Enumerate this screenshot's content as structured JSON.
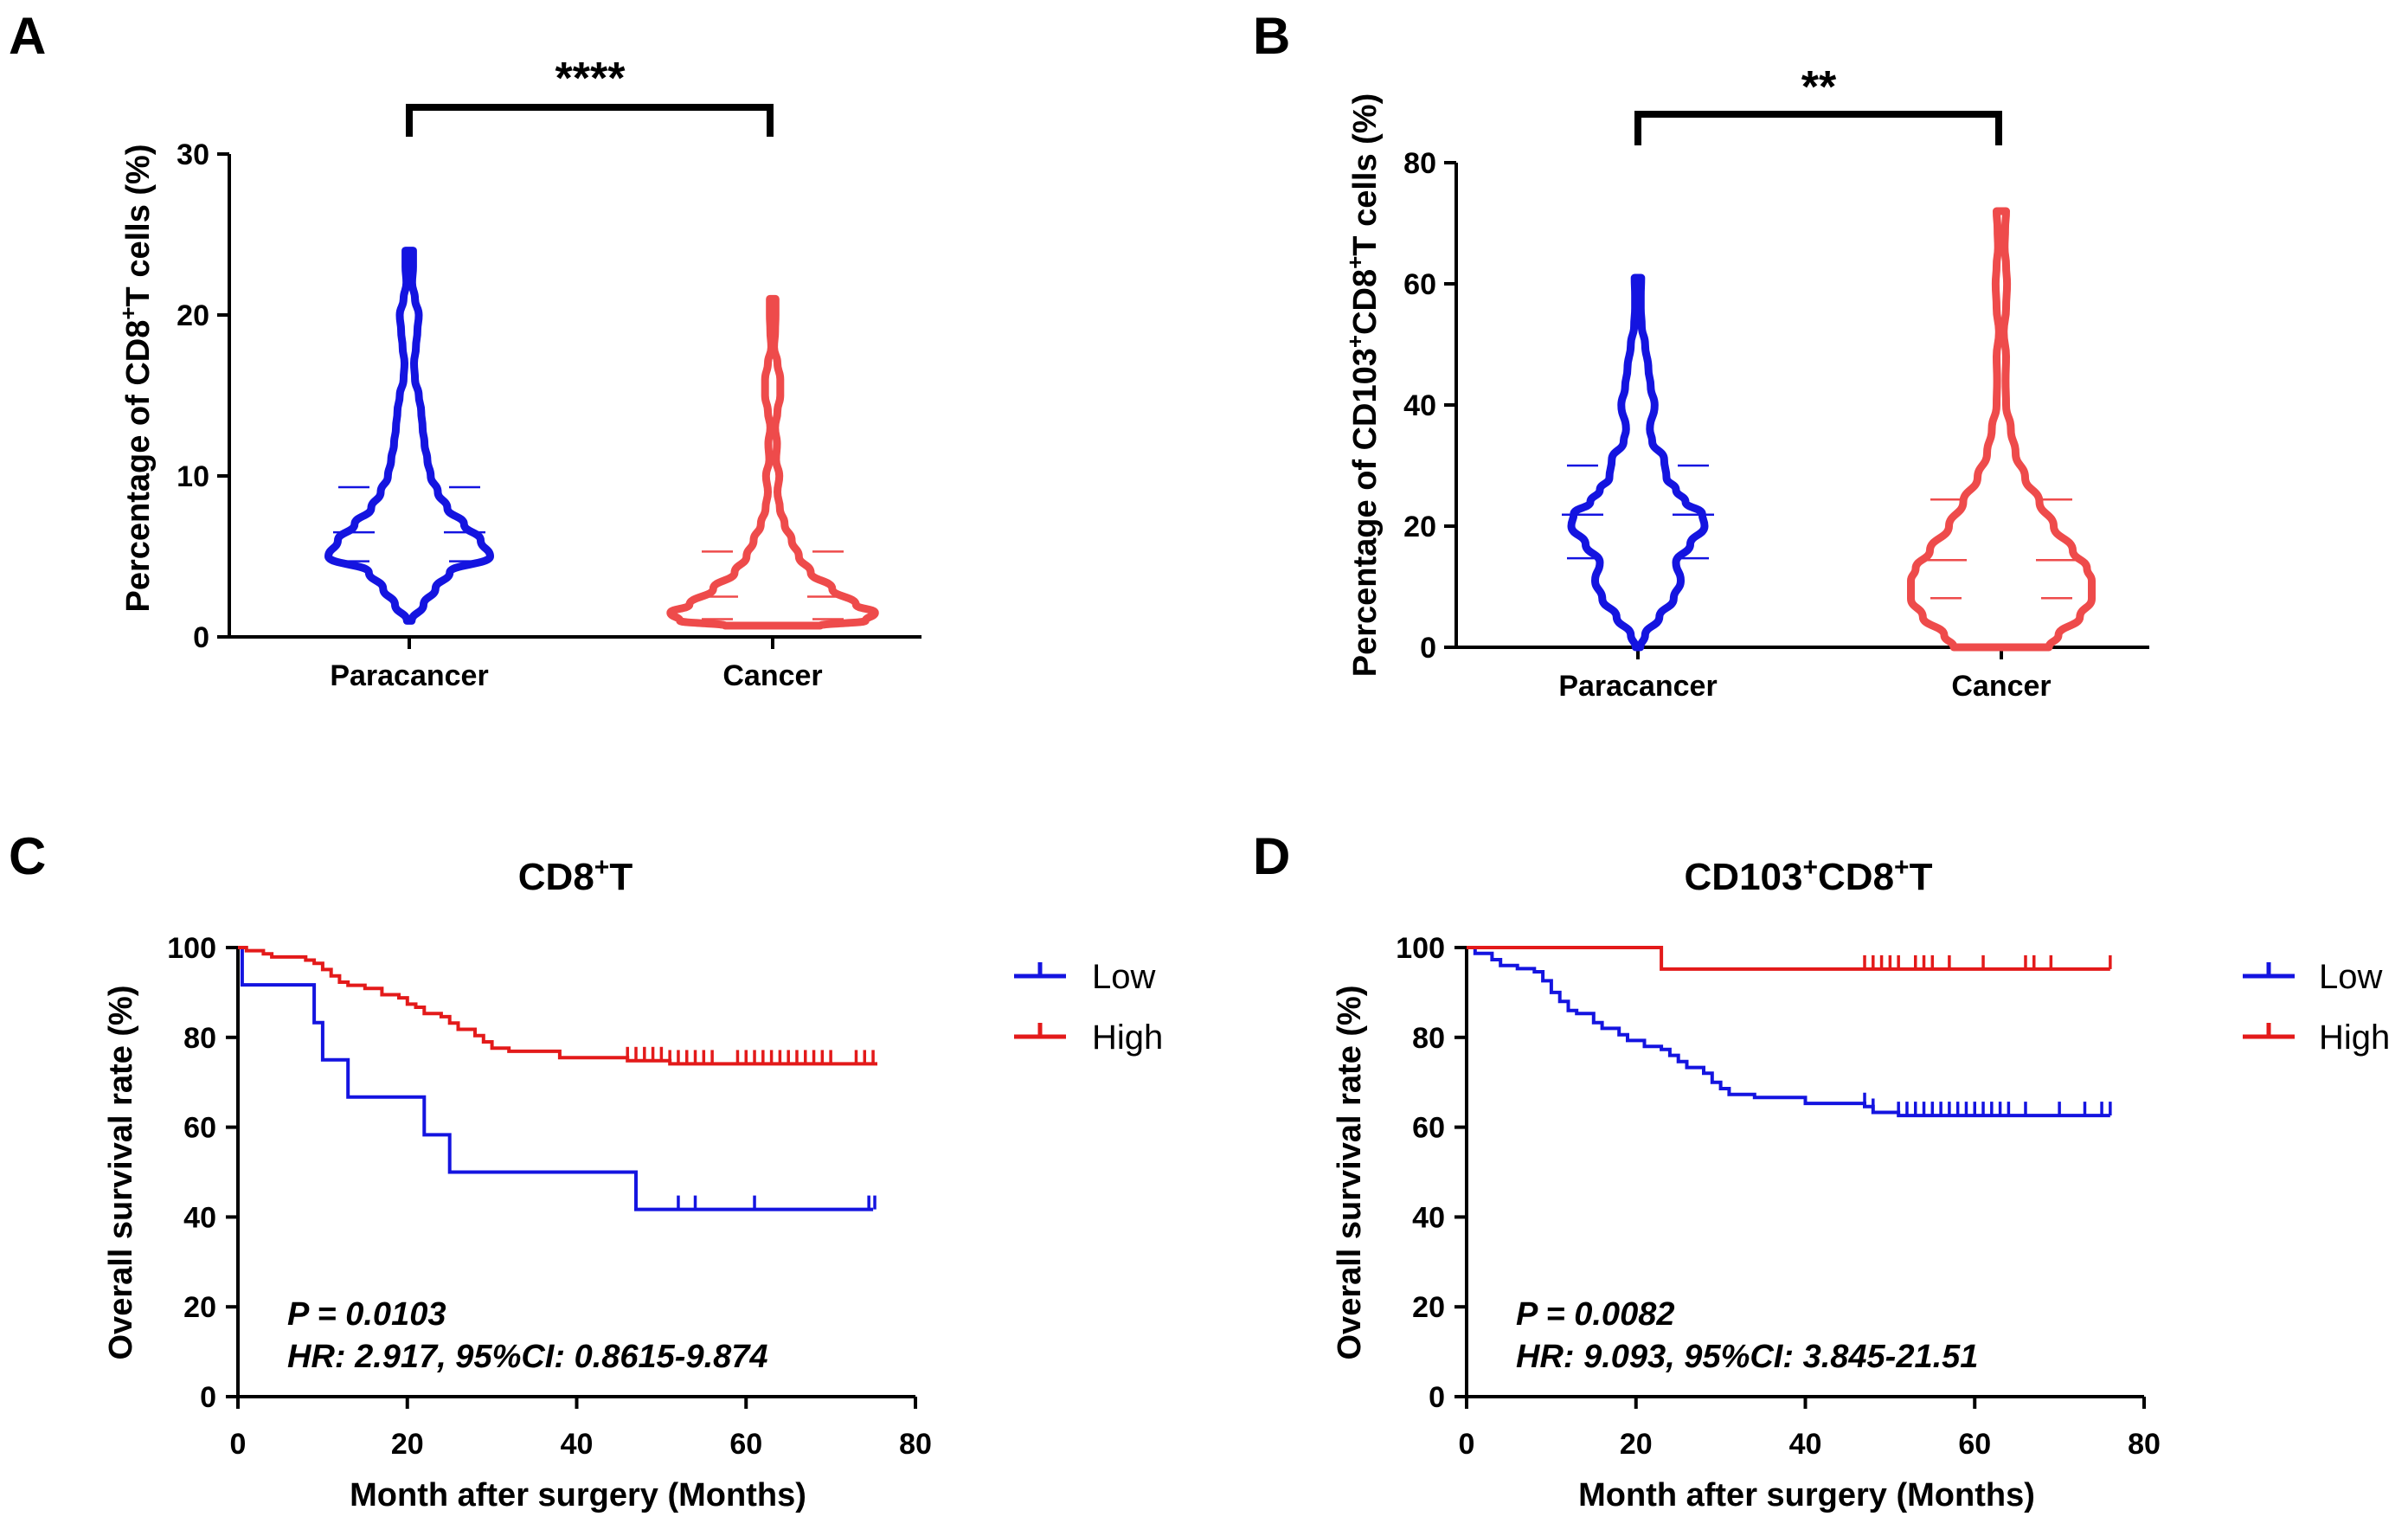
{
  "colors": {
    "paracancer": "#1414e0",
    "cancer": "#ee4b4b",
    "low": "#1414e0",
    "high": "#e31a1a",
    "axis": "#000000"
  },
  "chart_data": [
    {
      "panel": "A",
      "type": "violin",
      "ylabel_prefix": "Percentage of CD8",
      "ylabel_sup": "+",
      "ylabel_suffix": "T cells (%)",
      "ylim": [
        0,
        30
      ],
      "yticks": [
        "0",
        "10",
        "20",
        "30"
      ],
      "categories": [
        "Paracancer",
        "Cancer"
      ],
      "significance": "****",
      "series": [
        {
          "name": "Paracancer",
          "profile": [
            [
              1,
              5
            ],
            [
              2,
              30
            ],
            [
              3,
              55
            ],
            [
              4,
              85
            ],
            [
              5,
              170
            ],
            [
              6,
              150
            ],
            [
              7,
              115
            ],
            [
              8,
              80
            ],
            [
              9,
              60
            ],
            [
              10,
              45
            ],
            [
              11,
              38
            ],
            [
              12,
              32
            ],
            [
              13,
              28
            ],
            [
              14,
              25
            ],
            [
              15,
              20
            ],
            [
              16,
              12
            ],
            [
              17,
              10
            ],
            [
              18,
              14
            ],
            [
              19,
              17
            ],
            [
              20,
              20
            ],
            [
              21,
              12
            ],
            [
              22,
              6
            ],
            [
              23,
              8
            ],
            [
              24,
              8
            ]
          ],
          "quartiles": [
            4.7,
            6.5,
            9.3
          ]
        },
        {
          "name": "Cancer",
          "profile": [
            [
              0.7,
              100
            ],
            [
              1,
              195
            ],
            [
              1.5,
              215
            ],
            [
              2,
              175
            ],
            [
              3,
              125
            ],
            [
              4,
              80
            ],
            [
              5,
              55
            ],
            [
              6,
              40
            ],
            [
              7,
              25
            ],
            [
              8,
              15
            ],
            [
              9,
              10
            ],
            [
              10,
              14
            ],
            [
              11,
              7
            ],
            [
              12,
              9
            ],
            [
              13,
              5
            ],
            [
              14,
              10
            ],
            [
              15,
              16
            ],
            [
              16,
              16
            ],
            [
              17,
              10
            ],
            [
              18,
              3
            ],
            [
              19,
              5
            ],
            [
              20,
              6
            ],
            [
              21,
              6
            ]
          ],
          "quartiles": [
            1.1,
            2.5,
            5.3
          ]
        }
      ]
    },
    {
      "panel": "B",
      "type": "violin",
      "ylabel_prefix": "Percentage of CD103",
      "ylabel_sup": "+",
      "ylabel_mid": "CD8",
      "ylabel_sup2": "+",
      "ylabel_suffix": "T cells (%)",
      "ylim": [
        0,
        80
      ],
      "yticks": [
        "0",
        "20",
        "40",
        "60",
        "80"
      ],
      "categories": [
        "Paracancer",
        "Cancer"
      ],
      "significance": "**",
      "series": [
        {
          "name": "Paracancer",
          "profile": [
            [
              0,
              5
            ],
            [
              2,
              15
            ],
            [
              5,
              45
            ],
            [
              8,
              75
            ],
            [
              11,
              90
            ],
            [
              14,
              80
            ],
            [
              17,
              110
            ],
            [
              20,
              140
            ],
            [
              22,
              135
            ],
            [
              24,
              100
            ],
            [
              26,
              80
            ],
            [
              28,
              60
            ],
            [
              31,
              55
            ],
            [
              34,
              30
            ],
            [
              36,
              25
            ],
            [
              40,
              35
            ],
            [
              43,
              27
            ],
            [
              46,
              22
            ],
            [
              50,
              15
            ],
            [
              53,
              8
            ],
            [
              56,
              6
            ],
            [
              58,
              6
            ],
            [
              61,
              7
            ]
          ],
          "quartiles": [
            14.7,
            21.9,
            30.0
          ]
        },
        {
          "name": "Cancer",
          "profile": [
            [
              0,
              100
            ],
            [
              2,
              120
            ],
            [
              5,
              165
            ],
            [
              8,
              190
            ],
            [
              11,
              190
            ],
            [
              13,
              180
            ],
            [
              16,
              150
            ],
            [
              20,
              110
            ],
            [
              24,
              80
            ],
            [
              28,
              50
            ],
            [
              32,
              30
            ],
            [
              36,
              20
            ],
            [
              40,
              10
            ],
            [
              44,
              9
            ],
            [
              48,
              10
            ],
            [
              52,
              5
            ],
            [
              56,
              10
            ],
            [
              60,
              12
            ],
            [
              63,
              10
            ],
            [
              66,
              7
            ],
            [
              69,
              8
            ],
            [
              72,
              10
            ]
          ],
          "quartiles": [
            8.1,
            14.4,
            24.4
          ]
        }
      ]
    },
    {
      "panel": "C",
      "type": "line",
      "subtype": "kaplan-meier",
      "title_prefix": "CD8",
      "title_sup": "+",
      "title_suffix": "T",
      "xlabel": "Month after surgery (Months)",
      "ylabel": "Overall survival rate (%)",
      "xlim": [
        0,
        80
      ],
      "ylim": [
        0,
        100
      ],
      "xticks": [
        "0",
        "20",
        "40",
        "60",
        "80"
      ],
      "yticks": [
        "0",
        "20",
        "40",
        "60",
        "80",
        "100"
      ],
      "p_label": "P = 0.0103",
      "hr_label": "HR",
      "hr_text": ":  2.917, 95%CI: 0.8615-9.874",
      "series": [
        {
          "name": "Low",
          "steps": [
            [
              0,
              100
            ],
            [
              0.5,
              91.7
            ],
            [
              9,
              83.3
            ],
            [
              10,
              75
            ],
            [
              13,
              66.7
            ],
            [
              22,
              58.3
            ],
            [
              25,
              50
            ],
            [
              47,
              41.7
            ],
            [
              75,
              41.7
            ]
          ],
          "censored": [
            52,
            54,
            61,
            74.5,
            75.2
          ]
        },
        {
          "name": "High",
          "steps": [
            [
              0,
              100
            ],
            [
              1,
              99.3
            ],
            [
              3,
              98.6
            ],
            [
              4,
              97.9
            ],
            [
              8,
              97.2
            ],
            [
              9,
              96.5
            ],
            [
              10,
              95.1
            ],
            [
              11,
              93.7
            ],
            [
              12,
              92.3
            ],
            [
              13,
              91.6
            ],
            [
              15,
              90.9
            ],
            [
              17,
              89.5
            ],
            [
              19,
              88.8
            ],
            [
              20,
              87.4
            ],
            [
              21,
              86.7
            ],
            [
              22,
              85.3
            ],
            [
              24,
              84.6
            ],
            [
              25,
              83.2
            ],
            [
              26,
              81.8
            ],
            [
              28,
              80.4
            ],
            [
              29,
              79
            ],
            [
              30,
              77.6
            ],
            [
              32,
              76.9
            ],
            [
              38,
              75.5
            ],
            [
              46,
              74.8
            ],
            [
              51,
              74.1
            ],
            [
              75.5,
              74.1
            ]
          ],
          "censored": [
            46,
            47,
            48,
            49,
            50,
            51,
            52,
            53,
            54,
            55,
            56,
            59,
            60,
            61,
            62,
            63,
            64,
            65,
            66,
            67,
            68,
            69,
            70,
            73,
            74,
            75
          ]
        }
      ],
      "legend": [
        "Low",
        "High"
      ]
    },
    {
      "panel": "D",
      "type": "line",
      "subtype": "kaplan-meier",
      "title_prefix": "CD103",
      "title_sup": "+",
      "title_mid": "CD8",
      "title_sup2": "+",
      "title_suffix": "T",
      "xlabel": "Month after surgery (Months)",
      "ylabel": "Overall survival rate (%)",
      "xlim": [
        0,
        80
      ],
      "ylim": [
        0,
        100
      ],
      "xticks": [
        "0",
        "20",
        "40",
        "60",
        "80"
      ],
      "yticks": [
        "0",
        "20",
        "40",
        "60",
        "80",
        "100"
      ],
      "p_label": "P = 0.0082",
      "hr_label": "HR",
      "hr_text": ":  9.093, 95%CI: 3.845-21.51",
      "series": [
        {
          "name": "Low",
          "steps": [
            [
              0,
              100
            ],
            [
              1,
              98.7
            ],
            [
              3,
              97.3
            ],
            [
              4,
              96
            ],
            [
              6,
              95.3
            ],
            [
              8,
              94.6
            ],
            [
              9,
              92.6
            ],
            [
              10,
              90
            ],
            [
              11,
              88
            ],
            [
              12,
              86
            ],
            [
              13,
              85.3
            ],
            [
              15,
              83.3
            ],
            [
              16,
              82
            ],
            [
              18,
              80.6
            ],
            [
              19,
              79.3
            ],
            [
              21,
              78
            ],
            [
              23,
              77.3
            ],
            [
              24,
              76
            ],
            [
              25,
              74.6
            ],
            [
              26,
              73.3
            ],
            [
              28,
              72
            ],
            [
              29,
              70
            ],
            [
              30,
              68.6
            ],
            [
              31,
              67.3
            ],
            [
              34,
              66.6
            ],
            [
              40,
              65.3
            ],
            [
              47,
              64.6
            ],
            [
              48,
              63.3
            ],
            [
              51,
              62.6
            ],
            [
              76,
              62.6
            ]
          ],
          "censored": [
            47,
            48,
            51,
            52,
            53,
            54,
            55,
            56,
            57,
            58,
            59,
            60,
            61,
            62,
            63,
            64,
            66,
            70,
            73,
            75,
            76
          ]
        },
        {
          "name": "High",
          "steps": [
            [
              0,
              100
            ],
            [
              23,
              100
            ],
            [
              23,
              95.2
            ],
            [
              76,
              95.2
            ]
          ],
          "censored": [
            47,
            48,
            49,
            50,
            51,
            53,
            54,
            55,
            57,
            61,
            66,
            67,
            69,
            76
          ]
        }
      ],
      "legend": [
        "Low",
        "High"
      ]
    }
  ]
}
